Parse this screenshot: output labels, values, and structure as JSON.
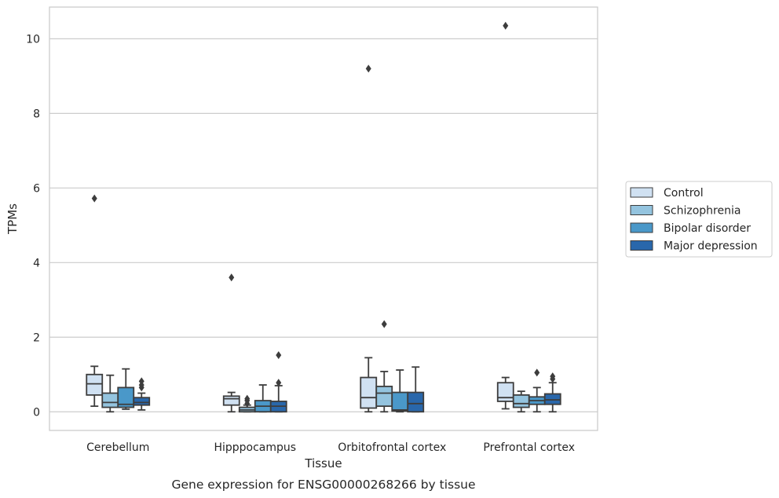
{
  "caption": "Gene expression for ENSG00000268266 by tissue",
  "chart_data": {
    "type": "box",
    "title": "",
    "xlabel": "Tissue",
    "ylabel": "TPMs",
    "ylim": [
      -0.5,
      10.85
    ],
    "yticks": [
      0,
      2,
      4,
      6,
      8,
      10
    ],
    "grid": "horizontal",
    "legend_position": "right",
    "categories": [
      "Cerebellum",
      "Hipppocampus",
      "Orbitofrontal cortex",
      "Prefrontal cortex"
    ],
    "series": [
      {
        "name": "Control",
        "color": "#d0e1f2",
        "boxes": [
          {
            "whisker_low": 0.15,
            "q1": 0.45,
            "median": 0.75,
            "q3": 1.0,
            "whisker_high": 1.22,
            "outliers": [
              5.72
            ]
          },
          {
            "whisker_low": 0.0,
            "q1": 0.18,
            "median": 0.35,
            "q3": 0.42,
            "whisker_high": 0.52,
            "outliers": [
              3.6
            ]
          },
          {
            "whisker_low": 0.0,
            "q1": 0.1,
            "median": 0.38,
            "q3": 0.92,
            "whisker_high": 1.45,
            "outliers": [
              9.2
            ]
          },
          {
            "whisker_low": 0.08,
            "q1": 0.28,
            "median": 0.38,
            "q3": 0.78,
            "whisker_high": 0.92,
            "outliers": [
              10.35
            ]
          }
        ]
      },
      {
        "name": "Schizophrenia",
        "color": "#94c4df",
        "boxes": [
          {
            "whisker_low": 0.0,
            "q1": 0.12,
            "median": 0.25,
            "q3": 0.5,
            "whisker_high": 0.98,
            "outliers": []
          },
          {
            "whisker_low": 0.0,
            "q1": 0.0,
            "median": 0.05,
            "q3": 0.12,
            "whisker_high": 0.18,
            "outliers": [
              0.22,
              0.3,
              0.35
            ]
          },
          {
            "whisker_low": 0.0,
            "q1": 0.15,
            "median": 0.5,
            "q3": 0.68,
            "whisker_high": 1.08,
            "outliers": [
              2.35
            ]
          },
          {
            "whisker_low": 0.0,
            "q1": 0.12,
            "median": 0.22,
            "q3": 0.45,
            "whisker_high": 0.55,
            "outliers": []
          }
        ]
      },
      {
        "name": "Bipolar disorder",
        "color": "#4a98c9",
        "boxes": [
          {
            "whisker_low": 0.07,
            "q1": 0.12,
            "median": 0.2,
            "q3": 0.65,
            "whisker_high": 1.15,
            "outliers": []
          },
          {
            "whisker_low": 0.0,
            "q1": 0.0,
            "median": 0.15,
            "q3": 0.3,
            "whisker_high": 0.72,
            "outliers": []
          },
          {
            "whisker_low": 0.0,
            "q1": 0.02,
            "median": 0.05,
            "q3": 0.52,
            "whisker_high": 1.12,
            "outliers": []
          },
          {
            "whisker_low": 0.0,
            "q1": 0.2,
            "median": 0.3,
            "q3": 0.4,
            "whisker_high": 0.65,
            "outliers": [
              1.05
            ]
          }
        ]
      },
      {
        "name": "Major depression",
        "color": "#2967ab",
        "boxes": [
          {
            "whisker_low": 0.05,
            "q1": 0.18,
            "median": 0.25,
            "q3": 0.38,
            "whisker_high": 0.5,
            "outliers": [
              0.65,
              0.72,
              0.82
            ]
          },
          {
            "whisker_low": 0.0,
            "q1": 0.0,
            "median": 0.15,
            "q3": 0.28,
            "whisker_high": 0.7,
            "outliers": [
              0.78,
              1.52
            ]
          },
          {
            "whisker_low": 0.0,
            "q1": 0.0,
            "median": 0.22,
            "q3": 0.52,
            "whisker_high": 1.2,
            "outliers": []
          },
          {
            "whisker_low": 0.0,
            "q1": 0.2,
            "median": 0.32,
            "q3": 0.48,
            "whisker_high": 0.78,
            "outliers": [
              0.88,
              0.95
            ]
          }
        ]
      }
    ]
  }
}
